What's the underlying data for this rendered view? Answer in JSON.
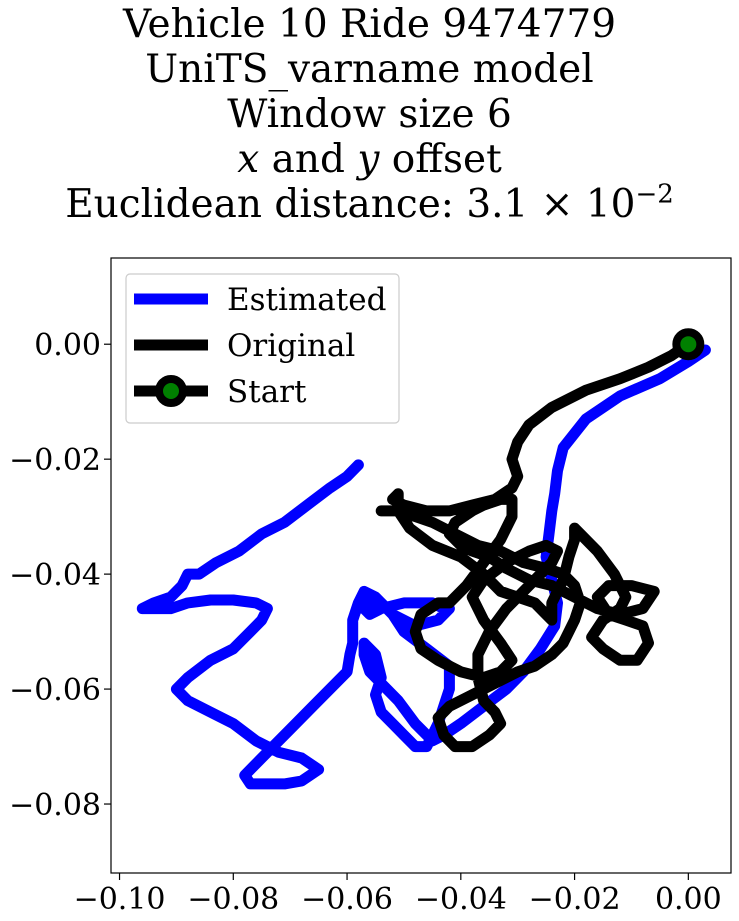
{
  "title": {
    "line1": "Vehicle 10 Ride 9474779",
    "line2": "UniTS_varname model",
    "line3": "Window size 6",
    "line4_x": "x",
    "line4_and": " and ",
    "line4_y": "y",
    "line4_rest": " offset",
    "line5_prefix": "Euclidean distance: 3.1 × 10",
    "line5_exp": "−2"
  },
  "colors": {
    "estimated": "#0000ff",
    "original": "#000000",
    "start_marker_fill": "#008000",
    "start_marker_edge": "#000000"
  },
  "chart_data": {
    "type": "line",
    "title": "Vehicle 10 Ride 9474779 UniTS_varname model Window size 6 x and y offset Euclidean distance: 3.1 × 10^-2",
    "xlabel": "",
    "ylabel": "",
    "xlim": [
      -0.1015,
      0.0075
    ],
    "ylim": [
      -0.092,
      0.015
    ],
    "grid": false,
    "legend_position": "top-left",
    "x_ticks": [
      -0.1,
      -0.08,
      -0.06,
      -0.04,
      -0.02,
      0.0
    ],
    "x_tick_labels": [
      "−0.10",
      "−0.08",
      "−0.06",
      "−0.04",
      "−0.02",
      "0.00"
    ],
    "y_ticks": [
      0.0,
      -0.02,
      -0.04,
      -0.06,
      -0.08
    ],
    "y_tick_labels": [
      "0.00",
      "−0.02",
      "−0.04",
      "−0.06",
      "−0.08"
    ],
    "legend": [
      "Estimated",
      "Original",
      "Start"
    ],
    "series": [
      {
        "name": "Estimated",
        "color": "#0000ff",
        "x": [
          0.003,
          0.0,
          -0.005,
          -0.012,
          -0.018,
          -0.022,
          -0.023,
          -0.0235,
          -0.024,
          -0.0245,
          -0.025,
          -0.024,
          -0.023,
          -0.0235,
          -0.026,
          -0.029,
          -0.032,
          -0.036,
          -0.04,
          -0.043,
          -0.045,
          -0.048,
          -0.051,
          -0.054,
          -0.056,
          -0.057,
          -0.057,
          -0.055,
          -0.054,
          -0.055,
          -0.054,
          -0.052,
          -0.05,
          -0.048,
          -0.046,
          -0.044,
          -0.042,
          -0.042,
          -0.046,
          -0.05,
          -0.052,
          -0.054,
          -0.056,
          -0.057,
          -0.056,
          -0.054,
          -0.05,
          -0.047,
          -0.045,
          -0.043,
          -0.042,
          -0.044,
          -0.048,
          -0.052,
          -0.055,
          -0.057,
          -0.058,
          -0.059,
          -0.059,
          -0.0595,
          -0.06,
          -0.062,
          -0.064,
          -0.066,
          -0.07,
          -0.075,
          -0.078,
          -0.077,
          -0.074,
          -0.071,
          -0.068,
          -0.065,
          -0.068,
          -0.072,
          -0.076,
          -0.08,
          -0.084,
          -0.088,
          -0.09,
          -0.088,
          -0.084,
          -0.08,
          -0.077,
          -0.075,
          -0.074,
          -0.076,
          -0.08,
          -0.084,
          -0.088,
          -0.091,
          -0.094,
          -0.096,
          -0.094,
          -0.091,
          -0.089,
          -0.088,
          -0.086,
          -0.083,
          -0.079,
          -0.075,
          -0.071,
          -0.067,
          -0.063,
          -0.06,
          -0.058
        ],
        "y": [
          -0.001,
          -0.003,
          -0.006,
          -0.009,
          -0.013,
          -0.018,
          -0.022,
          -0.026,
          -0.029,
          -0.033,
          -0.037,
          -0.041,
          -0.045,
          -0.049,
          -0.053,
          -0.057,
          -0.06,
          -0.063,
          -0.066,
          -0.068,
          -0.069,
          -0.066,
          -0.062,
          -0.059,
          -0.057,
          -0.054,
          -0.052,
          -0.054,
          -0.058,
          -0.061,
          -0.064,
          -0.066,
          -0.068,
          -0.07,
          -0.07,
          -0.066,
          -0.06,
          -0.056,
          -0.053,
          -0.05,
          -0.047,
          -0.045,
          -0.045,
          -0.046,
          -0.047,
          -0.046,
          -0.045,
          -0.045,
          -0.045,
          -0.046,
          -0.046,
          -0.048,
          -0.049,
          -0.047,
          -0.044,
          -0.043,
          -0.045,
          -0.048,
          -0.052,
          -0.054,
          -0.057,
          -0.059,
          -0.061,
          -0.063,
          -0.067,
          -0.072,
          -0.075,
          -0.0765,
          -0.0765,
          -0.0765,
          -0.076,
          -0.074,
          -0.072,
          -0.071,
          -0.069,
          -0.066,
          -0.064,
          -0.062,
          -0.06,
          -0.058,
          -0.055,
          -0.053,
          -0.05,
          -0.048,
          -0.046,
          -0.045,
          -0.0445,
          -0.0445,
          -0.045,
          -0.046,
          -0.046,
          -0.046,
          -0.045,
          -0.044,
          -0.042,
          -0.04,
          -0.04,
          -0.038,
          -0.036,
          -0.033,
          -0.031,
          -0.028,
          -0.025,
          -0.023,
          -0.021
        ]
      },
      {
        "name": "Original",
        "color": "#000000",
        "x": [
          0.0,
          -0.003,
          -0.007,
          -0.012,
          -0.018,
          -0.024,
          -0.028,
          -0.03,
          -0.031,
          -0.03,
          -0.031,
          -0.034,
          -0.038,
          -0.042,
          -0.046,
          -0.05,
          -0.052,
          -0.051,
          -0.051,
          -0.049,
          -0.045,
          -0.04,
          -0.036,
          -0.033,
          -0.03,
          -0.027,
          -0.025,
          -0.024,
          -0.024,
          -0.022,
          -0.021,
          -0.02,
          -0.02,
          -0.019,
          -0.016,
          -0.013,
          -0.011,
          -0.012,
          -0.015,
          -0.017,
          -0.015,
          -0.012,
          -0.009,
          -0.007,
          -0.008,
          -0.011,
          -0.014,
          -0.016,
          -0.014,
          -0.01,
          -0.006,
          -0.008,
          -0.012,
          -0.016,
          -0.02,
          -0.024,
          -0.028,
          -0.032,
          -0.035,
          -0.038,
          -0.04,
          -0.042,
          -0.041,
          -0.038,
          -0.036,
          -0.033,
          -0.031,
          -0.031,
          -0.033,
          -0.036,
          -0.039,
          -0.042,
          -0.044,
          -0.047,
          -0.048,
          -0.047,
          -0.044,
          -0.04,
          -0.036,
          -0.033,
          -0.031,
          -0.033,
          -0.036,
          -0.038,
          -0.036,
          -0.032,
          -0.028,
          -0.025,
          -0.023,
          -0.024,
          -0.026,
          -0.029,
          -0.032,
          -0.035,
          -0.037,
          -0.037,
          -0.036,
          -0.034,
          -0.033,
          -0.035,
          -0.038,
          -0.041,
          -0.043,
          -0.044,
          -0.042,
          -0.038,
          -0.034,
          -0.03,
          -0.027,
          -0.024,
          -0.022,
          -0.02,
          -0.019,
          -0.02,
          -0.022,
          -0.025,
          -0.029,
          -0.033,
          -0.037,
          -0.041,
          -0.045,
          -0.048,
          -0.051,
          -0.054
        ],
        "y": [
          0.0,
          -0.002,
          -0.004,
          -0.006,
          -0.008,
          -0.011,
          -0.014,
          -0.017,
          -0.02,
          -0.023,
          -0.025,
          -0.027,
          -0.028,
          -0.029,
          -0.029,
          -0.028,
          -0.027,
          -0.026,
          -0.029,
          -0.032,
          -0.035,
          -0.037,
          -0.04,
          -0.043,
          -0.044,
          -0.045,
          -0.047,
          -0.048,
          -0.045,
          -0.041,
          -0.037,
          -0.034,
          -0.032,
          -0.033,
          -0.036,
          -0.04,
          -0.044,
          -0.046,
          -0.048,
          -0.051,
          -0.053,
          -0.055,
          -0.055,
          -0.052,
          -0.049,
          -0.048,
          -0.047,
          -0.044,
          -0.042,
          -0.042,
          -0.043,
          -0.046,
          -0.047,
          -0.046,
          -0.044,
          -0.042,
          -0.041,
          -0.039,
          -0.037,
          -0.036,
          -0.035,
          -0.033,
          -0.031,
          -0.029,
          -0.028,
          -0.027,
          -0.027,
          -0.03,
          -0.034,
          -0.038,
          -0.042,
          -0.045,
          -0.045,
          -0.047,
          -0.05,
          -0.053,
          -0.055,
          -0.057,
          -0.058,
          -0.057,
          -0.055,
          -0.052,
          -0.048,
          -0.044,
          -0.041,
          -0.038,
          -0.036,
          -0.035,
          -0.036,
          -0.038,
          -0.04,
          -0.043,
          -0.046,
          -0.05,
          -0.054,
          -0.058,
          -0.062,
          -0.064,
          -0.066,
          -0.068,
          -0.07,
          -0.07,
          -0.068,
          -0.065,
          -0.063,
          -0.061,
          -0.059,
          -0.057,
          -0.056,
          -0.054,
          -0.052,
          -0.048,
          -0.045,
          -0.042,
          -0.04,
          -0.039,
          -0.038,
          -0.036,
          -0.035,
          -0.033,
          -0.031,
          -0.03,
          -0.029,
          -0.029
        ]
      },
      {
        "name": "Start",
        "x": [
          0.0
        ],
        "y": [
          0.0
        ],
        "marker": "circle",
        "marker_fill": "#008000",
        "marker_edge": "#000000"
      }
    ]
  }
}
